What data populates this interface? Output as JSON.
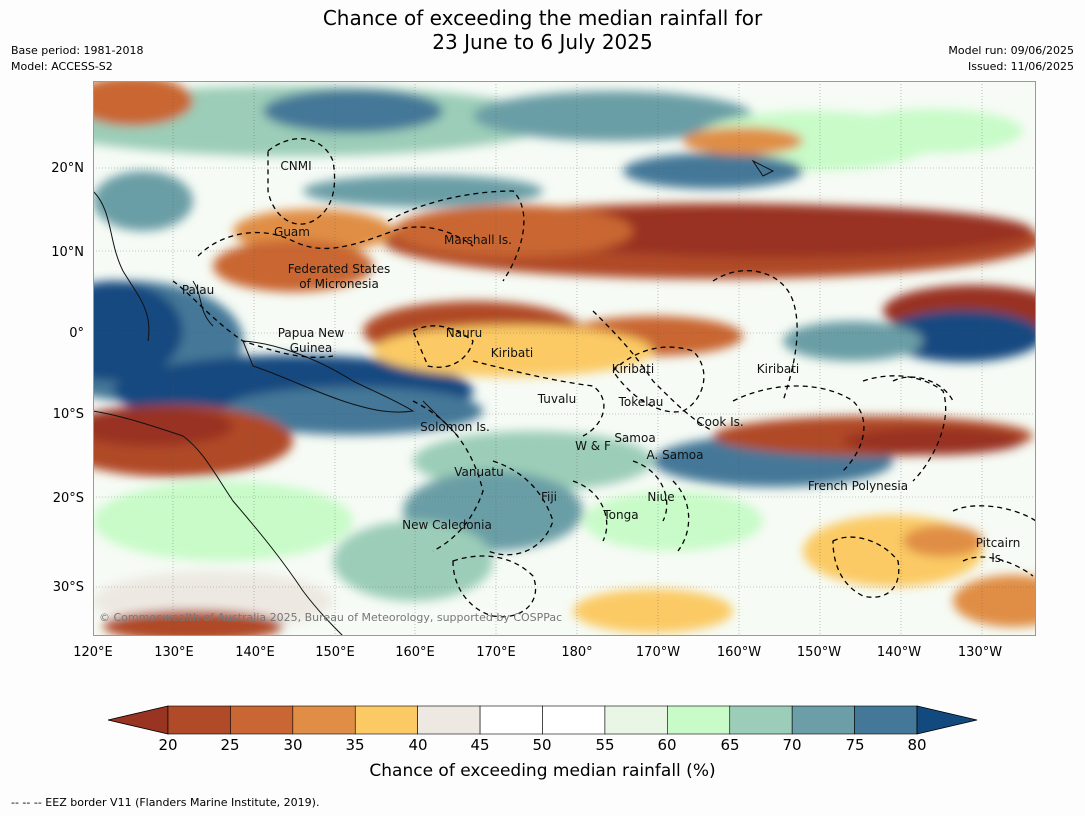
{
  "title_line1": "Chance of exceeding the median rainfall for",
  "title_line2": "23 June to 6 July 2025",
  "base_period": "Base period: 1981-2018",
  "model": "Model: ACCESS-S2",
  "model_run": "Model run: 09/06/2025",
  "issued": "Issued: 11/06/2025",
  "copyright": "© Commonwealth of Australia 2025, Bureau of Meteorology, supported by COSPPac",
  "lat_ticks": [
    "20°N",
    "10°N",
    "0°",
    "10°S",
    "20°S",
    "30°S"
  ],
  "lon_ticks": [
    "120°E",
    "130°E",
    "140°E",
    "150°E",
    "160°E",
    "170°E",
    "180°",
    "170°W",
    "160°W",
    "150°W",
    "140°W",
    "130°W"
  ],
  "colorbar": {
    "title": "Chance of exceeding median rainfall (%)",
    "levels": [
      "20",
      "25",
      "30",
      "35",
      "40",
      "45",
      "50",
      "55",
      "60",
      "65",
      "70",
      "75",
      "80"
    ],
    "colors": [
      "#993322",
      "#b04a28",
      "#c96633",
      "#e08e45",
      "#fbca65",
      "#ede9e2",
      "#ffffff",
      "#ffffff",
      "#e9f6e6",
      "#c8fbc8",
      "#9bcdb8",
      "#6b9ea6",
      "#447898",
      "#124a80"
    ]
  },
  "footer": "-- -- -- EEZ border V11 (Flanders Marine Institute, 2019).",
  "regions": [
    "CNMI",
    "Guam",
    "Marshall Is.",
    "Federated States",
    "of Micronesia",
    "Palau",
    "Papua New",
    "Guinea",
    "Nauru",
    "Kiribati",
    "Kiribati",
    "Kiribati",
    "Tuvalu",
    "Tokelau",
    "Cook Is.",
    "Solomon Is.",
    "Samoa",
    "W & F",
    "A. Samoa",
    "Vanuatu",
    "Fiji",
    "Niue",
    "French Polynesia",
    "Tonga",
    "New Caledonia",
    "Pitcairn",
    "Is."
  ]
}
